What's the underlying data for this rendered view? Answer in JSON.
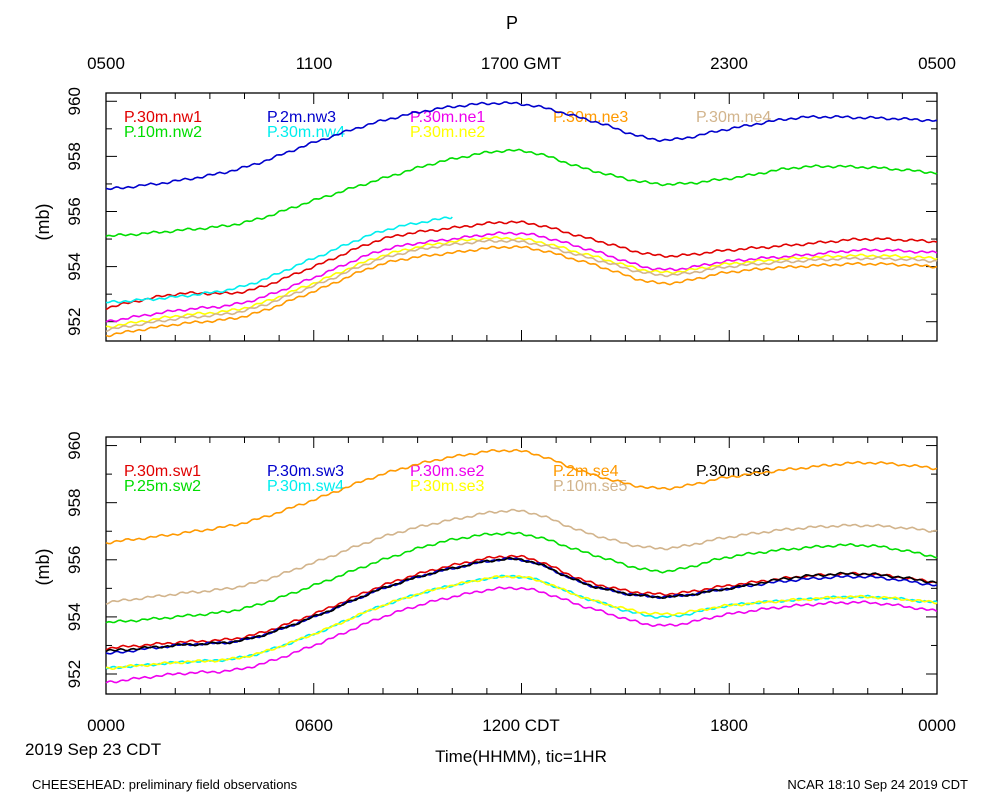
{
  "chart_data": {
    "type": "line",
    "title": "P",
    "top_axis_ticks": [
      "0500",
      "1100",
      "1700 GMT",
      "2300",
      "0500"
    ],
    "bottom_axis_ticks": [
      "0000",
      "0600",
      "1200 CDT",
      "1800",
      "0000"
    ],
    "xlabel": "Time(HHMM), tic=1HR",
    "date_label": "2019 Sep 23 CDT",
    "footer_left": "CHEESEHEAD: preliminary field observations",
    "footer_right": "NCAR 18:10 Sep 24 2019 CDT",
    "x_hours": [
      0,
      2,
      4,
      6,
      8,
      10,
      12,
      14,
      16,
      18,
      20,
      22,
      24
    ],
    "panels": [
      {
        "ylabel": "(mb)",
        "ylim": [
          951.3,
          960.3
        ],
        "yticks": [
          "952",
          "954",
          "956",
          "958",
          "960"
        ],
        "series": [
          {
            "name": "P.30m.nw1",
            "color": "#e00000",
            "values": [
              952.5,
              953.0,
              953.1,
              954.0,
              955.0,
              955.4,
              955.6,
              955.0,
              954.4,
              954.6,
              954.8,
              955.0,
              954.9
            ]
          },
          {
            "name": "P.10m.nw2",
            "color": "#00dd00",
            "values": [
              955.1,
              955.3,
              955.6,
              956.4,
              957.2,
              957.9,
              958.2,
              957.5,
              957.0,
              957.2,
              957.6,
              957.6,
              957.4
            ]
          },
          {
            "name": "P.2m.nw3",
            "color": "#0000cc",
            "values": [
              956.8,
              957.1,
              957.6,
              958.5,
              959.3,
              959.8,
              959.9,
              959.3,
              958.6,
              959.0,
              959.4,
              959.4,
              959.3
            ]
          },
          {
            "name": "P.30m.nw4",
            "color": "#00eeee",
            "values": [
              952.7,
              952.9,
              953.3,
              954.3,
              955.3,
              955.8,
              null,
              null,
              null,
              null,
              null,
              null,
              null
            ]
          },
          {
            "name": "P.30m.ne1",
            "color": "#ee00ee",
            "values": [
              952.0,
              952.4,
              952.7,
              953.6,
              954.6,
              955.0,
              955.2,
              954.6,
              953.9,
              954.2,
              954.4,
              954.6,
              954.5
            ]
          },
          {
            "name": "P.30m.ne2",
            "color": "#ffff00",
            "values": [
              951.8,
              952.2,
              952.5,
              953.4,
              954.4,
              954.9,
              955.0,
              954.4,
              953.8,
              954.1,
              954.3,
              954.4,
              954.3
            ]
          },
          {
            "name": "P.30m.ne3",
            "color": "#ff9900",
            "values": [
              951.5,
              951.9,
              952.2,
              953.1,
              954.1,
              954.5,
              954.7,
              954.1,
              953.4,
              953.8,
              954.0,
              954.1,
              954.0
            ]
          },
          {
            "name": "P.30m.ne4",
            "color": "#d2b48c",
            "values": [
              951.7,
              952.1,
              952.4,
              953.3,
              954.3,
              954.8,
              954.9,
              954.3,
              953.7,
              954.0,
              954.2,
              954.3,
              954.2
            ]
          }
        ]
      },
      {
        "ylabel": "(mb)",
        "ylim": [
          951.3,
          960.3
        ],
        "yticks": [
          "952",
          "954",
          "956",
          "958",
          "960"
        ],
        "series": [
          {
            "name": "P.30m.sw1",
            "color": "#e00000",
            "values": [
              952.9,
              953.1,
              953.3,
              954.1,
              955.1,
              955.8,
              956.1,
              955.2,
              954.8,
              955.1,
              955.4,
              955.5,
              955.2
            ]
          },
          {
            "name": "P.25m.sw2",
            "color": "#00dd00",
            "values": [
              953.8,
              954.0,
              954.3,
              955.1,
              956.0,
              956.7,
              956.9,
              956.2,
              955.6,
              956.1,
              956.4,
              956.5,
              956.1
            ]
          },
          {
            "name": "P.30m.sw3",
            "color": "#0000cc",
            "values": [
              952.7,
              953.0,
              953.2,
              954.0,
              955.0,
              955.7,
              956.0,
              955.1,
              954.7,
              955.0,
              955.3,
              955.4,
              955.1
            ]
          },
          {
            "name": "P.30m.sw4",
            "color": "#00eeee",
            "values": [
              952.2,
              952.4,
              952.6,
              953.4,
              954.4,
              955.1,
              955.4,
              954.6,
              954.0,
              954.4,
              954.6,
              954.7,
              954.5
            ]
          },
          {
            "name": "P.30m.se2",
            "color": "#ee00ee",
            "values": [
              951.7,
              952.0,
              952.2,
              953.0,
              954.0,
              954.7,
              955.0,
              954.3,
              953.7,
              954.1,
              954.4,
              954.5,
              954.2
            ]
          },
          {
            "name": "P.30m.se3",
            "color": "#ffff00",
            "values": [
              952.2,
              952.4,
              952.6,
              953.4,
              954.4,
              955.1,
              955.4,
              954.6,
              954.1,
              954.4,
              954.6,
              954.7,
              954.5
            ]
          },
          {
            "name": "P.2m.se4",
            "color": "#ff9900",
            "values": [
              956.6,
              956.9,
              957.3,
              958.1,
              959.0,
              959.6,
              959.8,
              959.0,
              958.5,
              958.9,
              959.2,
              959.4,
              959.2
            ]
          },
          {
            "name": "P.10m.se5",
            "color": "#d2b48c",
            "values": [
              954.5,
              954.8,
              955.1,
              955.9,
              956.8,
              957.4,
              957.7,
              956.9,
              956.4,
              956.8,
              957.1,
              957.2,
              957.0
            ]
          },
          {
            "name": "P.30m.se6",
            "color": "#000000",
            "values": [
              952.8,
              953.0,
              953.2,
              954.0,
              955.0,
              955.7,
              956.0,
              955.1,
              954.7,
              955.0,
              955.4,
              955.5,
              955.2
            ]
          }
        ]
      }
    ]
  }
}
